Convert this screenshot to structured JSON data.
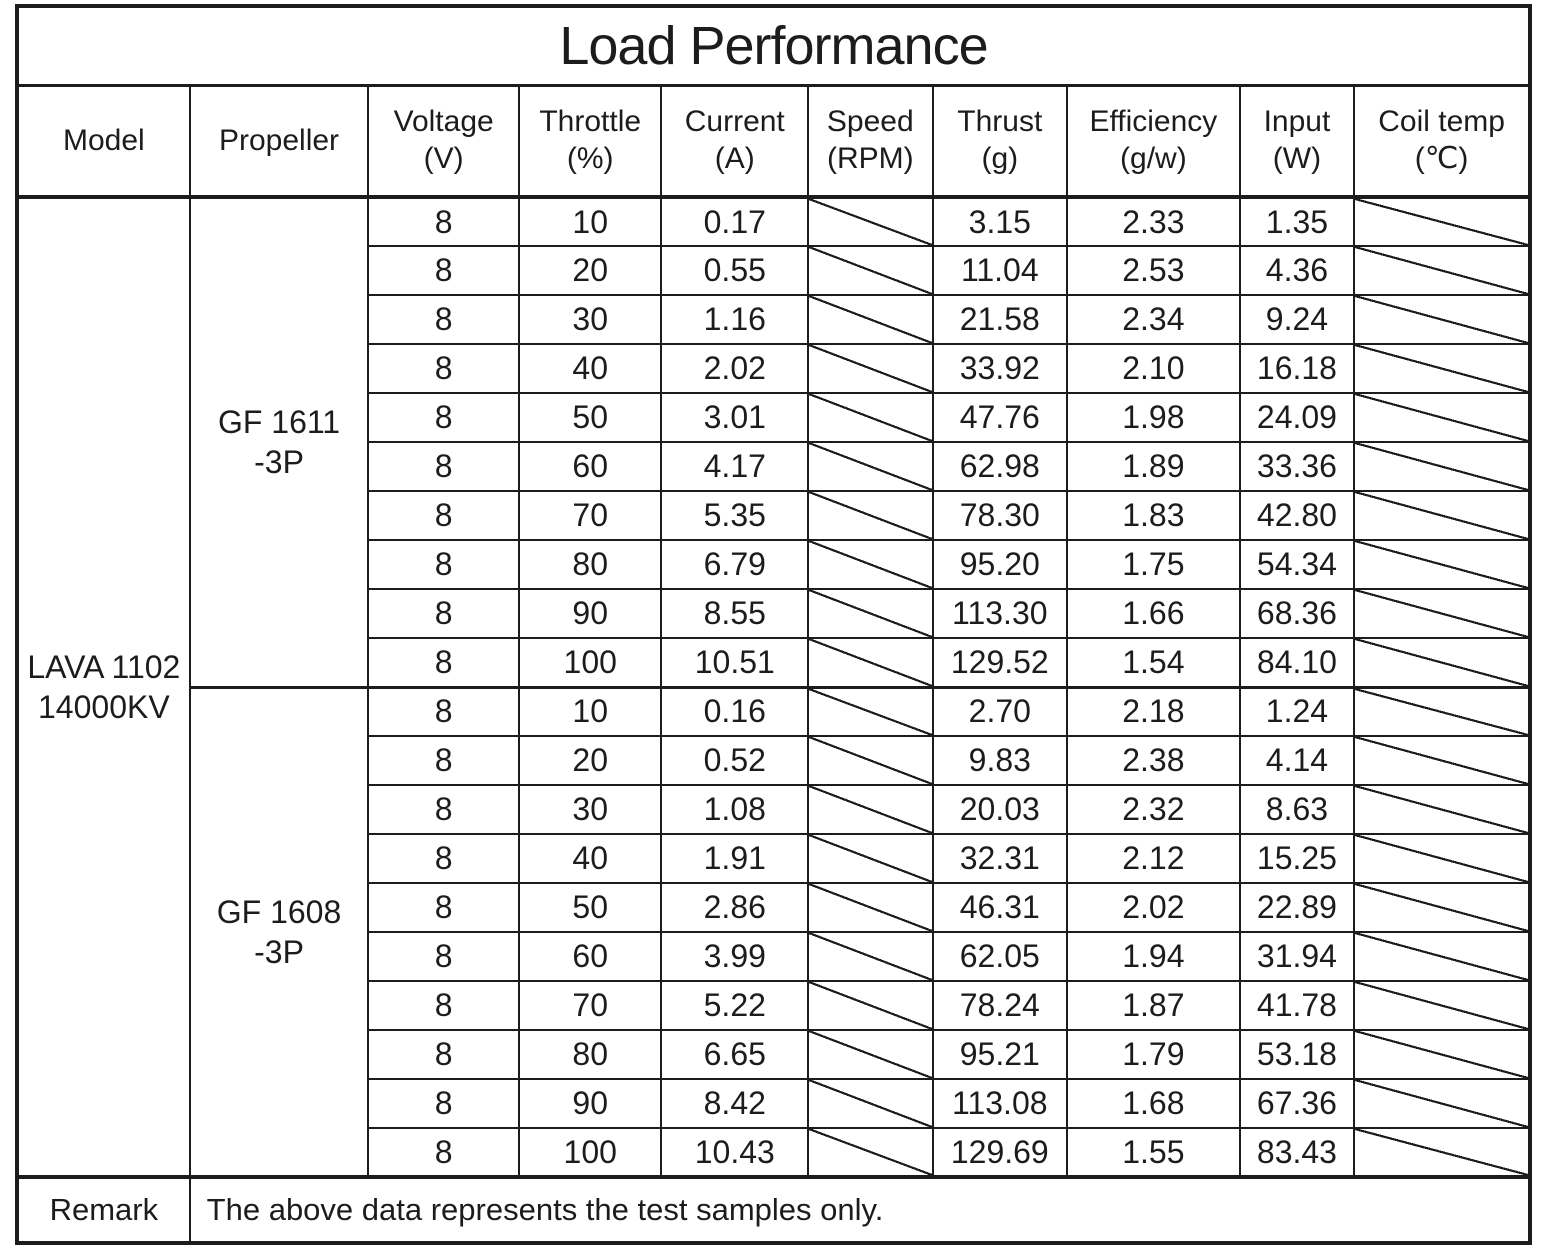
{
  "title": "Load Performance",
  "columns": [
    {
      "label": "Model",
      "unit": ""
    },
    {
      "label": "Propeller",
      "unit": ""
    },
    {
      "label": "Voltage",
      "unit": "(V)"
    },
    {
      "label": "Throttle",
      "unit": "(%)"
    },
    {
      "label": "Current",
      "unit": "(A)"
    },
    {
      "label": "Speed",
      "unit": "(RPM)"
    },
    {
      "label": "Thrust",
      "unit": "(g)"
    },
    {
      "label": "Efficiency",
      "unit": "(g/w)"
    },
    {
      "label": "Input",
      "unit": "(W)"
    },
    {
      "label": "Coil temp",
      "unit": "(℃)"
    }
  ],
  "model": {
    "line1": "LAVA 1102",
    "line2": "14000KV"
  },
  "sections": [
    {
      "propeller": {
        "line1": "GF 1611",
        "line2": "-3P"
      },
      "rows": [
        {
          "voltage": "8",
          "throttle": "10",
          "current": "0.17",
          "thrust": "3.15",
          "efficiency": "2.33",
          "input": "1.35"
        },
        {
          "voltage": "8",
          "throttle": "20",
          "current": "0.55",
          "thrust": "11.04",
          "efficiency": "2.53",
          "input": "4.36"
        },
        {
          "voltage": "8",
          "throttle": "30",
          "current": "1.16",
          "thrust": "21.58",
          "efficiency": "2.34",
          "input": "9.24"
        },
        {
          "voltage": "8",
          "throttle": "40",
          "current": "2.02",
          "thrust": "33.92",
          "efficiency": "2.10",
          "input": "16.18"
        },
        {
          "voltage": "8",
          "throttle": "50",
          "current": "3.01",
          "thrust": "47.76",
          "efficiency": "1.98",
          "input": "24.09"
        },
        {
          "voltage": "8",
          "throttle": "60",
          "current": "4.17",
          "thrust": "62.98",
          "efficiency": "1.89",
          "input": "33.36"
        },
        {
          "voltage": "8",
          "throttle": "70",
          "current": "5.35",
          "thrust": "78.30",
          "efficiency": "1.83",
          "input": "42.80"
        },
        {
          "voltage": "8",
          "throttle": "80",
          "current": "6.79",
          "thrust": "95.20",
          "efficiency": "1.75",
          "input": "54.34"
        },
        {
          "voltage": "8",
          "throttle": "90",
          "current": "8.55",
          "thrust": "113.30",
          "efficiency": "1.66",
          "input": "68.36"
        },
        {
          "voltage": "8",
          "throttle": "100",
          "current": "10.51",
          "thrust": "129.52",
          "efficiency": "1.54",
          "input": "84.10"
        }
      ]
    },
    {
      "propeller": {
        "line1": "GF 1608",
        "line2": "-3P"
      },
      "rows": [
        {
          "voltage": "8",
          "throttle": "10",
          "current": "0.16",
          "thrust": "2.70",
          "efficiency": "2.18",
          "input": "1.24"
        },
        {
          "voltage": "8",
          "throttle": "20",
          "current": "0.52",
          "thrust": "9.83",
          "efficiency": "2.38",
          "input": "4.14"
        },
        {
          "voltage": "8",
          "throttle": "30",
          "current": "1.08",
          "thrust": "20.03",
          "efficiency": "2.32",
          "input": "8.63"
        },
        {
          "voltage": "8",
          "throttle": "40",
          "current": "1.91",
          "thrust": "32.31",
          "efficiency": "2.12",
          "input": "15.25"
        },
        {
          "voltage": "8",
          "throttle": "50",
          "current": "2.86",
          "thrust": "46.31",
          "efficiency": "2.02",
          "input": "22.89"
        },
        {
          "voltage": "8",
          "throttle": "60",
          "current": "3.99",
          "thrust": "62.05",
          "efficiency": "1.94",
          "input": "31.94"
        },
        {
          "voltage": "8",
          "throttle": "70",
          "current": "5.22",
          "thrust": "78.24",
          "efficiency": "1.87",
          "input": "41.78"
        },
        {
          "voltage": "8",
          "throttle": "80",
          "current": "6.65",
          "thrust": "95.21",
          "efficiency": "1.79",
          "input": "53.18"
        },
        {
          "voltage": "8",
          "throttle": "90",
          "current": "8.42",
          "thrust": "113.08",
          "efficiency": "1.68",
          "input": "67.36"
        },
        {
          "voltage": "8",
          "throttle": "100",
          "current": "10.43",
          "thrust": "129.69",
          "efficiency": "1.55",
          "input": "83.43"
        }
      ]
    }
  ],
  "remark": {
    "label": "Remark",
    "text": "The above data represents the test samples only."
  },
  "colors": {
    "text": "#1c1c1c",
    "border": "#1c1c1c",
    "background": "#ffffff"
  }
}
